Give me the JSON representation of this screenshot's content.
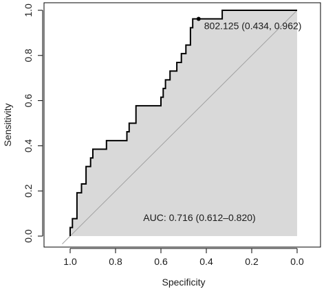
{
  "chart_data": {
    "type": "line",
    "title": "",
    "xlabel": "Specificity",
    "ylabel": "Sensitivity",
    "xlim": [
      1.0,
      0.0
    ],
    "ylim": [
      0.0,
      1.0
    ],
    "x_ticks": [
      "1.0",
      "0.8",
      "0.6",
      "0.4",
      "0.2",
      "0.0"
    ],
    "y_ticks": [
      "0.0",
      "0.2",
      "0.4",
      "0.6",
      "0.8",
      "1.0"
    ],
    "x_tick_values": [
      1.0,
      0.8,
      0.6,
      0.4,
      0.2,
      0.0
    ],
    "y_tick_values": [
      0.0,
      0.2,
      0.4,
      0.6,
      0.8,
      1.0
    ],
    "grid": false,
    "legend": "none",
    "reference_line": {
      "x": [
        1.0,
        0.0
      ],
      "y": [
        0.0,
        1.0
      ],
      "color": "#a0a0a0"
    },
    "auc_fill_color": "#d9d9d9",
    "curve_color": "#000000",
    "series": [
      {
        "specificity": [
          1.0,
          1.0,
          0.99,
          0.99,
          0.97,
          0.97,
          0.95,
          0.95,
          0.93,
          0.93,
          0.91,
          0.91,
          0.9,
          0.9,
          0.88,
          0.88,
          0.86,
          0.86,
          0.84,
          0.84,
          0.82,
          0.82,
          0.75,
          0.75,
          0.74,
          0.74,
          0.72,
          0.72,
          0.71,
          0.71,
          0.6,
          0.6,
          0.59,
          0.59,
          0.58,
          0.58,
          0.56,
          0.56,
          0.53,
          0.53,
          0.51,
          0.51,
          0.49,
          0.49,
          0.47,
          0.47,
          0.46,
          0.46,
          0.43,
          0.43,
          0.33,
          0.33,
          0.0
        ],
        "sensitivity": [
          0.0,
          0.038,
          0.038,
          0.077,
          0.077,
          0.192,
          0.192,
          0.231,
          0.231,
          0.308,
          0.308,
          0.346,
          0.346,
          0.385,
          0.385,
          0.385,
          0.385,
          0.385,
          0.385,
          0.423,
          0.423,
          0.423,
          0.423,
          0.462,
          0.462,
          0.5,
          0.5,
          0.5,
          0.5,
          0.577,
          0.577,
          0.615,
          0.615,
          0.654,
          0.654,
          0.692,
          0.692,
          0.731,
          0.731,
          0.769,
          0.769,
          0.808,
          0.808,
          0.846,
          0.846,
          0.923,
          0.923,
          0.962,
          0.962,
          0.962,
          0.962,
          1.0,
          1.0
        ]
      }
    ],
    "threshold_point": {
      "x": 0.434,
      "y": 0.962,
      "label": "802.125 (0.434, 0.962)"
    },
    "auc_label": "AUC: 0.716 (0.612–0.820)"
  }
}
